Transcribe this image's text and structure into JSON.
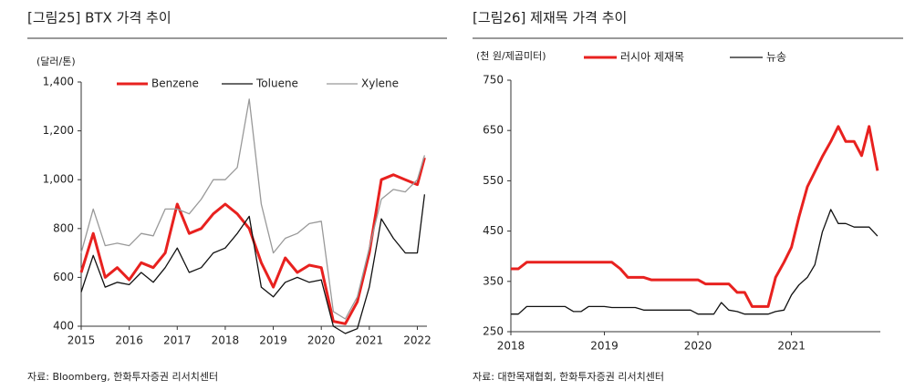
{
  "chart_data": [
    {
      "type": "line",
      "title": "[그림25]  BTX 가격 추이",
      "y_label": "(달러/톤)",
      "source": "자료: Bloomberg, 한화투자증권 리서치센터",
      "legend": "top",
      "x": [
        2015,
        2015.25,
        2015.5,
        2015.75,
        2016,
        2016.25,
        2016.5,
        2016.75,
        2017,
        2017.25,
        2017.5,
        2017.75,
        2018,
        2018.25,
        2018.5,
        2018.75,
        2019,
        2019.25,
        2019.5,
        2019.75,
        2020,
        2020.25,
        2020.5,
        2020.75,
        2021,
        2021.25,
        2021.5,
        2021.75,
        2022,
        2022.15
      ],
      "series": [
        {
          "name": "Benzene",
          "color": "#e8211f",
          "width": 3,
          "values": [
            620,
            780,
            600,
            640,
            590,
            660,
            640,
            700,
            900,
            780,
            800,
            860,
            900,
            860,
            800,
            660,
            560,
            680,
            620,
            650,
            640,
            420,
            410,
            500,
            700,
            1000,
            1020,
            1000,
            980,
            1090
          ]
        },
        {
          "name": "Toluene",
          "color": "#111111",
          "width": 1.3,
          "values": [
            540,
            690,
            560,
            580,
            570,
            620,
            580,
            640,
            720,
            620,
            640,
            700,
            720,
            780,
            850,
            560,
            520,
            580,
            600,
            580,
            590,
            400,
            370,
            390,
            560,
            840,
            760,
            700,
            700,
            940
          ]
        },
        {
          "name": "Xylene",
          "color": "#999999",
          "width": 1.3,
          "values": [
            700,
            880,
            730,
            740,
            730,
            780,
            770,
            880,
            880,
            860,
            920,
            1000,
            1000,
            1050,
            1330,
            900,
            700,
            760,
            780,
            820,
            830,
            460,
            430,
            520,
            720,
            920,
            960,
            950,
            1000,
            1100
          ]
        }
      ],
      "xlim": [
        2015,
        2022.2
      ],
      "xticks": [
        2015,
        2016,
        2017,
        2018,
        2019,
        2020,
        2021,
        2022
      ],
      "ylim": [
        400,
        1400
      ],
      "yticks": [
        400,
        600,
        800,
        {
          "value": 1000,
          "label": "1,000"
        },
        {
          "value": 1200,
          "label": "1,200"
        },
        {
          "value": 1400,
          "label": "1,400"
        }
      ],
      "grid": false
    },
    {
      "type": "line",
      "title": "[그림26]  제재목 가격 추이",
      "y_label": "(천 원/제곱미터)",
      "source": "자료: 대한목재협회, 한화투자증권 리서치센터",
      "legend": "top",
      "x": [
        2018,
        2018.08,
        2018.17,
        2018.25,
        2018.33,
        2018.42,
        2018.5,
        2018.58,
        2018.67,
        2018.75,
        2018.83,
        2018.92,
        2019,
        2019.08,
        2019.17,
        2019.25,
        2019.33,
        2019.42,
        2019.5,
        2019.58,
        2019.67,
        2019.75,
        2019.83,
        2019.92,
        2020,
        2020.08,
        2020.17,
        2020.25,
        2020.33,
        2020.42,
        2020.5,
        2020.58,
        2020.67,
        2020.75,
        2020.83,
        2020.92,
        2021,
        2021.08,
        2021.17,
        2021.25,
        2021.33,
        2021.42,
        2021.5,
        2021.58,
        2021.67,
        2021.75,
        2021.83,
        2021.92
      ],
      "series": [
        {
          "name": "러시아  제재목",
          "color": "#e8211f",
          "width": 3,
          "values": [
            375,
            375,
            388,
            388,
            388,
            388,
            388,
            388,
            388,
            388,
            388,
            388,
            388,
            388,
            375,
            358,
            358,
            358,
            353,
            353,
            353,
            353,
            353,
            353,
            353,
            345,
            345,
            345,
            345,
            328,
            328,
            300,
            300,
            300,
            358,
            388,
            418,
            478,
            538,
            568,
            598,
            628,
            658,
            628,
            628,
            600,
            658,
            570
          ]
        },
        {
          "name": "뉴송",
          "color": "#111111",
          "width": 1.3,
          "values": [
            285,
            285,
            300,
            300,
            300,
            300,
            300,
            300,
            290,
            290,
            300,
            300,
            300,
            298,
            298,
            298,
            298,
            293,
            293,
            293,
            293,
            293,
            293,
            293,
            285,
            285,
            285,
            308,
            293,
            290,
            285,
            285,
            285,
            285,
            290,
            293,
            323,
            343,
            358,
            383,
            448,
            493,
            465,
            465,
            458,
            458,
            458,
            440
          ]
        }
      ],
      "xlim": [
        2018,
        2021.95
      ],
      "xticks": [
        2018,
        2019,
        2020,
        2021
      ],
      "ylim": [
        250,
        750
      ],
      "yticks": [
        250,
        350,
        450,
        550,
        650,
        750
      ],
      "grid": false
    }
  ]
}
